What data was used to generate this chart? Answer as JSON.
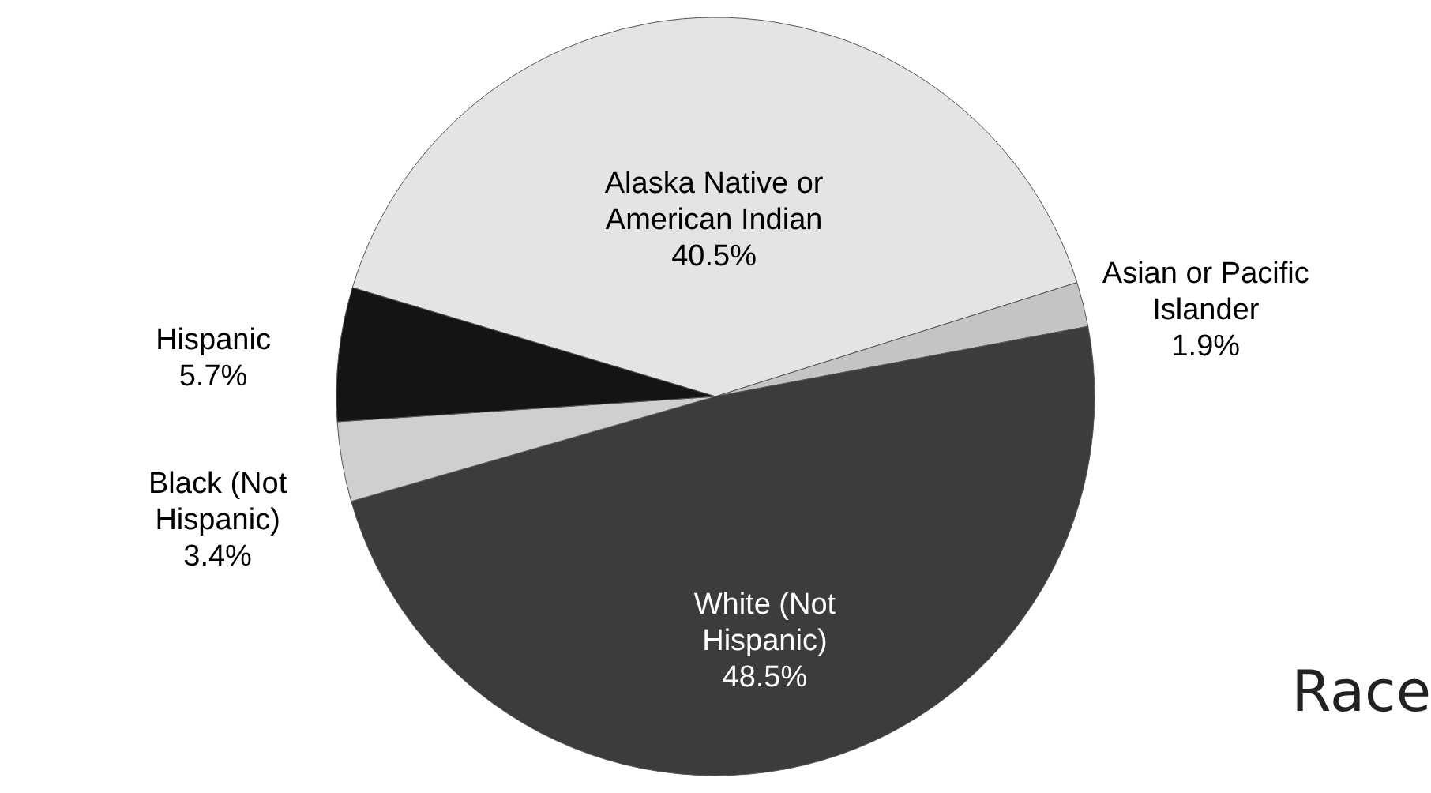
{
  "chart_data": {
    "type": "pie",
    "title": "Race",
    "categories": [
      "Alaska Native or American Indian",
      "Asian or Pacific Islander",
      "White (Not Hispanic)",
      "Black (Not Hispanic)",
      "Hispanic"
    ],
    "values": [
      40.5,
      1.9,
      48.5,
      3.4,
      5.7
    ],
    "value_labels": [
      "40.5%",
      "1.9%",
      "48.5%",
      "3.4%",
      "5.7%"
    ],
    "colors": [
      "#e4e4e4",
      "#c4c4c4",
      "#3c3c3c",
      "#cfcfcf",
      "#141414"
    ]
  }
}
